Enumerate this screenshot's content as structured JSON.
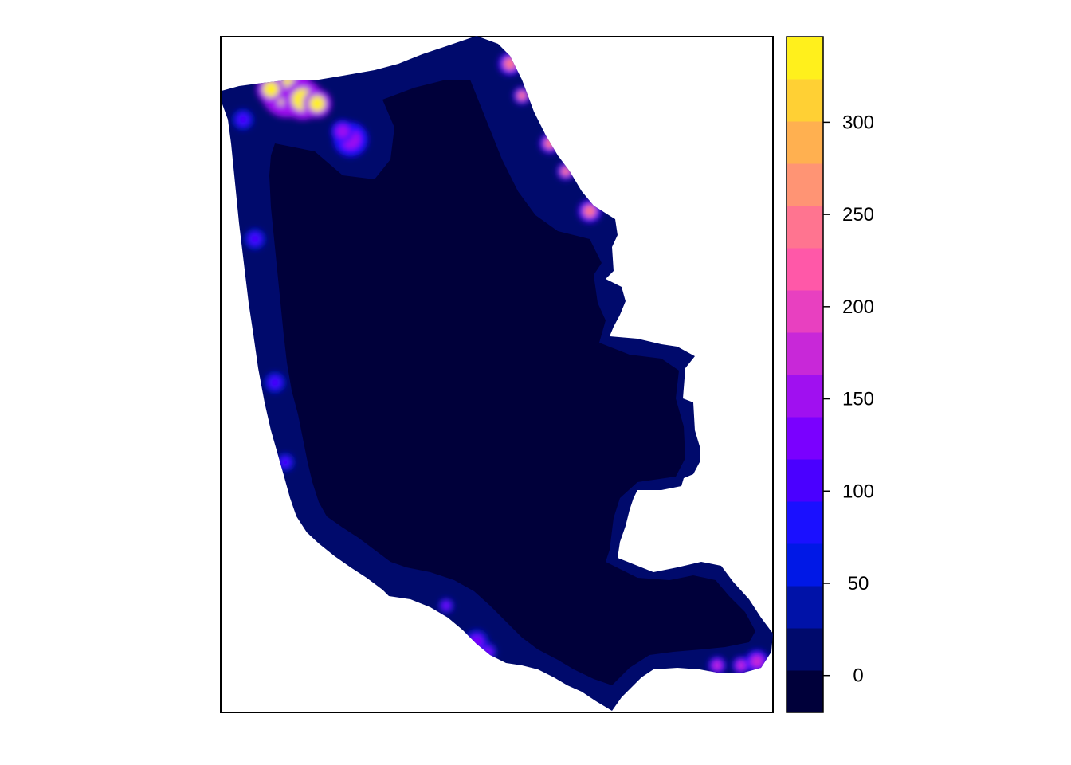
{
  "chart_data": {
    "type": "heatmap",
    "title": "",
    "xlabel": "",
    "ylabel": "",
    "axes_shown": false,
    "colorbar": {
      "palette": "topo-like (dark navy - blue - purple - magenta - orange - yellow)",
      "breaks": [
        -20,
        2.9,
        25.8,
        48.7,
        71.6,
        94.5,
        117.4,
        140.3,
        163.2,
        186.1,
        209,
        231.9,
        254.8,
        277.7,
        300.6,
        323.5,
        346.4
      ],
      "colors": [
        "#00003a",
        "#000a6c",
        "#0012a8",
        "#0018e6",
        "#1a10ff",
        "#4a00ff",
        "#7a00ff",
        "#a010f0",
        "#c828d8",
        "#e840c0",
        "#ff58a8",
        "#ff7490",
        "#ff9474",
        "#ffb050",
        "#ffd034",
        "#fff01c"
      ],
      "ticks": [
        0,
        50,
        100,
        150,
        200,
        250,
        300
      ],
      "tick_labels": [
        "0",
        "50",
        "100",
        "150",
        "200",
        "250",
        "300"
      ]
    },
    "surface": {
      "interior_value": -10,
      "edge_band_value": 20,
      "hotspots": [
        {
          "location": "upper-left coast",
          "value": 330
        },
        {
          "location": "upper-left inlet",
          "value": 160
        },
        {
          "location": "upper-right coast",
          "value": 240
        },
        {
          "location": "left coast middle",
          "value": 110
        },
        {
          "location": "bottom coast",
          "value": 140
        },
        {
          "location": "lower-right coast",
          "value": 180
        }
      ]
    }
  }
}
